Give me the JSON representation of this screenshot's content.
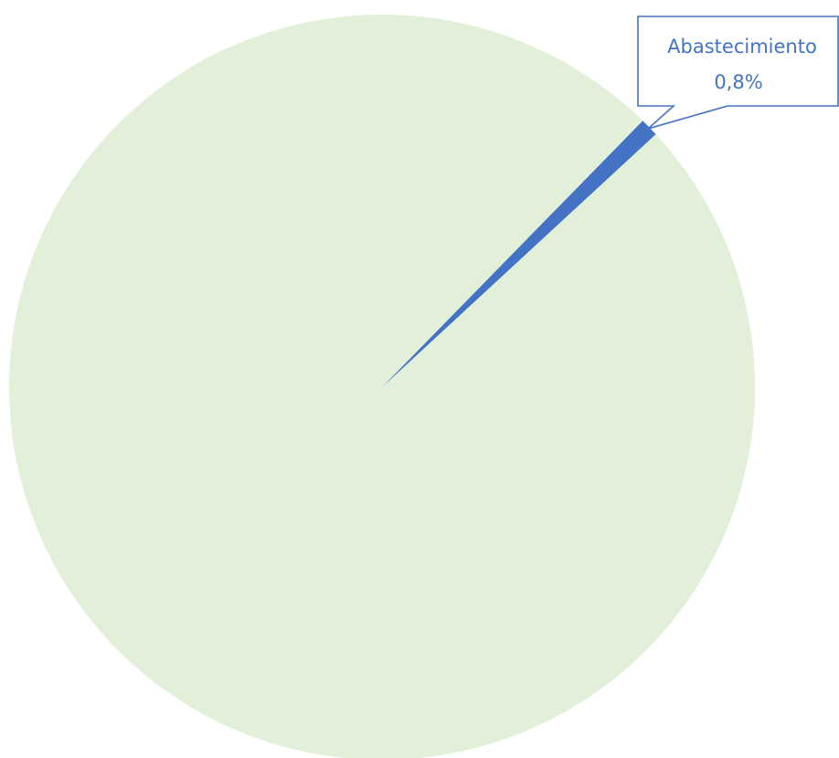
{
  "chart_data": {
    "type": "pie",
    "slices": [
      {
        "label": "",
        "value": 99.2,
        "color": "#e2efd9"
      },
      {
        "label": "Abastecimiento",
        "value": 0.8,
        "value_label": "0,8%",
        "color": "#4472c4"
      }
    ],
    "start_angle_deg": 45.8,
    "direction": "clockwise",
    "legend": "none",
    "callout": {
      "slice_index": 1,
      "text_color": "#4472c4",
      "border_color": "#4472c4"
    }
  }
}
